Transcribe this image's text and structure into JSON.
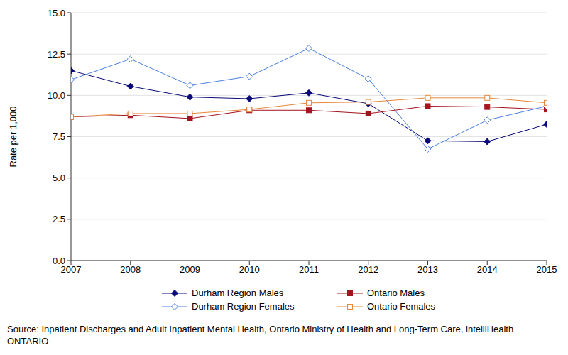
{
  "chart_data": {
    "type": "line",
    "y_label": "Rate per 1,000",
    "x": [
      2007,
      2008,
      2009,
      2010,
      2011,
      2012,
      2013,
      2014,
      2015
    ],
    "xlim": [
      2007,
      2015
    ],
    "xticks": [
      2007,
      2008,
      2009,
      2010,
      2011,
      2012,
      2013,
      2014,
      2015
    ],
    "ylim": [
      0,
      15
    ],
    "yticks": [
      {
        "value": 0,
        "label": "0.0"
      },
      2.5,
      {
        "value": 5,
        "label": "5.0"
      },
      7.5,
      {
        "value": 10,
        "label": "10.0"
      },
      12.5,
      {
        "value": 15,
        "label": "15.0"
      }
    ],
    "grid": true,
    "legend": "bottom",
    "series": [
      {
        "name": "Durham Region Males",
        "color": "#0a0a7a",
        "marker": "diamond",
        "values": [
          11.5,
          10.55,
          9.9,
          9.8,
          10.15,
          9.5,
          7.25,
          7.2,
          8.25
        ]
      },
      {
        "name": "Ontario Males",
        "color": "#a3141e",
        "marker": "square",
        "values": [
          8.7,
          8.8,
          8.6,
          9.1,
          9.1,
          8.9,
          9.35,
          9.3,
          9.15
        ]
      },
      {
        "name": "Durham Region Females",
        "color": "#4a7fe0",
        "marker": "diamond_open",
        "values": [
          10.95,
          12.2,
          10.6,
          11.15,
          12.85,
          11.0,
          6.75,
          8.5,
          9.35
        ]
      },
      {
        "name": "Ontario Females",
        "color": "#e8883a",
        "marker": "square_open",
        "values": [
          8.7,
          8.9,
          8.9,
          9.15,
          9.55,
          9.6,
          9.85,
          9.85,
          9.55
        ]
      }
    ],
    "source": "Source: Inpatient Discharges and Adult Inpatient Mental Health, Ontario Ministry of Health and Long-Term Care, intelliHealth ONTARIO"
  }
}
